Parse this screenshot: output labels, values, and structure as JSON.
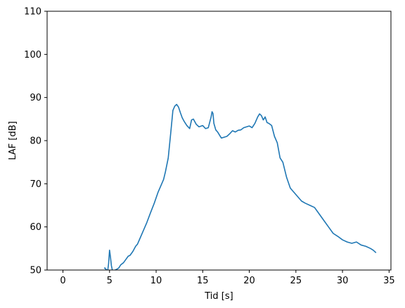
{
  "chart_data": {
    "type": "line",
    "title": "",
    "xlabel": "Tid [s]",
    "ylabel": "LAF [dB]",
    "xlim": [
      -1.7,
      35.2
    ],
    "ylim": [
      50,
      110
    ],
    "xticks": [
      0,
      5,
      10,
      15,
      20,
      25,
      30,
      35
    ],
    "yticks": [
      50,
      60,
      70,
      80,
      90,
      100,
      110
    ],
    "grid": false,
    "legend": "none",
    "series": [
      {
        "color": "#1f77b4",
        "x": [
          4.45,
          4.5,
          4.6,
          4.7,
          4.8,
          4.9,
          5.0,
          5.1,
          5.2,
          5.3,
          5.4,
          5.5,
          5.6,
          5.8,
          6.0,
          6.2,
          6.5,
          6.8,
          7.0,
          7.2,
          7.5,
          7.8,
          8.0,
          8.3,
          8.6,
          9.0,
          9.4,
          9.8,
          10.2,
          10.5,
          10.8,
          11.0,
          11.3,
          11.6,
          11.8,
          12.0,
          12.2,
          12.4,
          12.6,
          12.8,
          13.0,
          13.3,
          13.6,
          13.8,
          14.0,
          14.3,
          14.6,
          15.0,
          15.3,
          15.6,
          15.9,
          16.0,
          16.1,
          16.2,
          16.4,
          16.6,
          16.8,
          17.0,
          17.3,
          17.6,
          17.9,
          18.2,
          18.5,
          18.8,
          19.1,
          19.4,
          19.7,
          20.0,
          20.3,
          20.6,
          20.9,
          21.1,
          21.3,
          21.5,
          21.7,
          21.9,
          22.1,
          22.4,
          22.7,
          23.0,
          23.3,
          23.6,
          24.0,
          24.4,
          24.8,
          25.2,
          25.6,
          26.0,
          26.5,
          27.0,
          27.5,
          28.0,
          28.5,
          29.0,
          29.5,
          30.0,
          30.5,
          31.0,
          31.5,
          32.0,
          32.5,
          33.0,
          33.3,
          33.6
        ],
        "y": [
          50.3,
          50.5,
          50.2,
          50.0,
          49.8,
          51.5,
          54.6,
          53.0,
          51.0,
          50.0,
          49.5,
          49.8,
          50.0,
          50.2,
          50.5,
          51.2,
          51.7,
          52.6,
          53.2,
          53.4,
          54.3,
          55.5,
          56.0,
          57.5,
          59.0,
          61.0,
          63.3,
          65.5,
          68.0,
          69.5,
          71.0,
          72.8,
          76.0,
          82.5,
          87.0,
          88.0,
          88.4,
          87.8,
          86.5,
          85.3,
          84.5,
          83.5,
          82.8,
          84.8,
          85.0,
          83.8,
          83.2,
          83.5,
          82.8,
          83.0,
          85.5,
          86.7,
          86.3,
          84.0,
          82.5,
          82.0,
          81.3,
          80.6,
          80.8,
          81.0,
          81.6,
          82.3,
          82.0,
          82.4,
          82.5,
          83.0,
          83.2,
          83.4,
          83.0,
          84.0,
          85.5,
          86.2,
          85.8,
          84.8,
          85.5,
          84.2,
          84.0,
          83.5,
          81.0,
          79.5,
          76.0,
          75.0,
          71.5,
          69.0,
          68.0,
          67.0,
          66.0,
          65.5,
          65.0,
          64.5,
          63.0,
          61.5,
          60.0,
          58.5,
          57.8,
          57.0,
          56.5,
          56.2,
          56.5,
          55.8,
          55.5,
          55.0,
          54.6,
          54.0
        ]
      }
    ]
  }
}
